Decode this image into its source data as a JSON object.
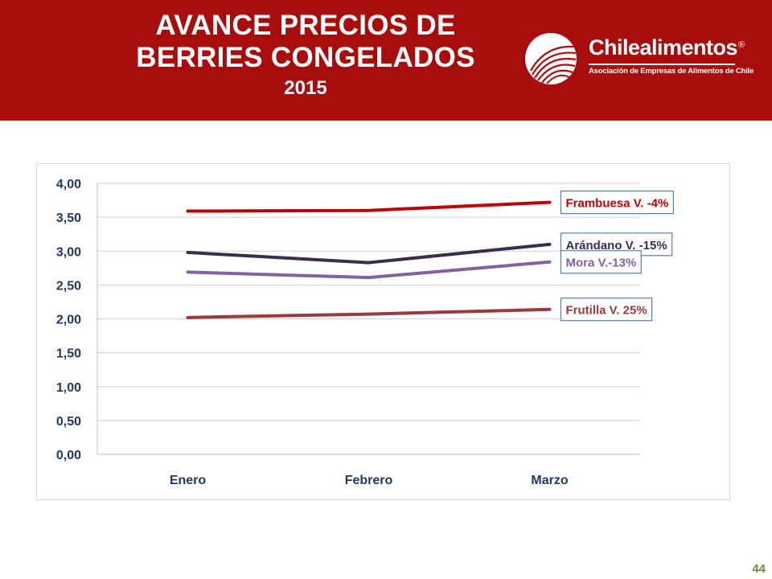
{
  "header": {
    "title_line1": "AVANCE PRECIOS DE",
    "title_line2": "BERRIES CONGELADOS",
    "year": "2015"
  },
  "logo": {
    "brand": "Chilealimentos",
    "registered": "®",
    "tagline": "Asociación de Empresas de Alimentos de Chile"
  },
  "page_number": "44",
  "colors": {
    "header_bg": "#a80d0d",
    "axis_text": "#1f3864",
    "frambuesa": "#c00000",
    "arandano": "#3a2d4f",
    "mora": "#8064a2",
    "frutilla": "#9b3a3a"
  },
  "chart_data": {
    "type": "line",
    "categories": [
      "Enero",
      "Febrero",
      "Marzo"
    ],
    "y_ticks": [
      "0,00",
      "0,50",
      "1,00",
      "1,50",
      "2,00",
      "2,50",
      "3,00",
      "3,50",
      "4,00"
    ],
    "ylim": [
      0,
      4
    ],
    "grid": true,
    "series": [
      {
        "name": "Frambuesa V. -4%",
        "values": [
          3.59,
          3.6,
          3.72
        ],
        "color": "#c00000"
      },
      {
        "name": "Arándano V. -15%",
        "values": [
          2.98,
          2.83,
          3.1
        ],
        "color": "#3a2d4f"
      },
      {
        "name": "Mora V.-13%",
        "values": [
          2.69,
          2.61,
          2.84
        ],
        "color": "#8064a2"
      },
      {
        "name": "Frutilla V. 25%",
        "values": [
          2.02,
          2.07,
          2.14
        ],
        "color": "#9b3a3a"
      }
    ]
  }
}
